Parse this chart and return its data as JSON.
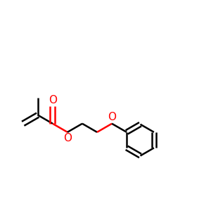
{
  "bg_color": "#ffffff",
  "bond_color": "#000000",
  "o_color": "#ff0000",
  "bond_width": 1.8,
  "dbo": 0.012,
  "figsize": [
    3.0,
    3.0
  ],
  "dpi": 100,
  "xlim": [
    0.0,
    1.0
  ],
  "ylim": [
    0.2,
    0.9
  ]
}
